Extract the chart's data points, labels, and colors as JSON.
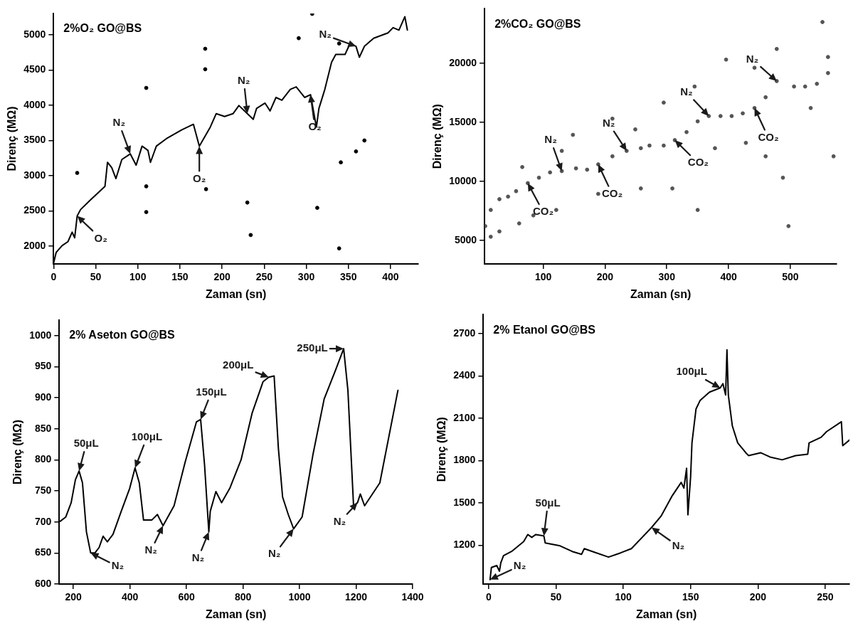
{
  "chart_data": [
    {
      "type": "line",
      "title": "2%O₂ GO@BS",
      "xlabel": "Zaman (sn)",
      "ylabel": "Direnç (MΩ)",
      "xlim": [
        0,
        433
      ],
      "ylim": [
        1750,
        5300
      ],
      "xticks": [
        0,
        50,
        100,
        150,
        200,
        250,
        300,
        350,
        400
      ],
      "yticks": [
        2000,
        2500,
        3000,
        3500,
        4000,
        4500,
        5000
      ],
      "series": [
        {
          "type": "line",
          "color": "#000000",
          "x": [
            0,
            3,
            10,
            17,
            22,
            25,
            28,
            32,
            44,
            61,
            64,
            69,
            74,
            81,
            91,
            98,
            105,
            112,
            115,
            122,
            135,
            152,
            166,
            173,
            186,
            193,
            203,
            213,
            220,
            230,
            237,
            241,
            251,
            257,
            264,
            271,
            281,
            288,
            298,
            305,
            312,
            315,
            322,
            330,
            335,
            346,
            352,
            359,
            363,
            369,
            380,
            397,
            403,
            410,
            417,
            420
          ],
          "values": [
            1760,
            1912,
            2008,
            2065,
            2200,
            2120,
            2430,
            2520,
            2660,
            2850,
            3190,
            3115,
            2960,
            3230,
            3310,
            3150,
            3420,
            3360,
            3190,
            3420,
            3535,
            3650,
            3730,
            3420,
            3690,
            3880,
            3840,
            3880,
            3995,
            3880,
            3800,
            3955,
            4030,
            3920,
            4110,
            4070,
            4225,
            4260,
            4110,
            4150,
            3690,
            3955,
            4225,
            4610,
            4720,
            4720,
            4875,
            4835,
            4680,
            4835,
            4950,
            5025,
            5100,
            5065,
            5255,
            5065
          ]
        },
        {
          "type": "scatter",
          "marker": "circle",
          "color": "#000000",
          "x": [
            28,
            110,
            110,
            110,
            180,
            180,
            181,
            230,
            234,
            313,
            339,
            341,
            359,
            307,
            291,
            369,
            339
          ],
          "values": [
            3040,
            4245,
            2850,
            2485,
            4800,
            4510,
            2810,
            2620,
            2160,
            2545,
            1970,
            3190,
            3345,
            5295,
            4950,
            3500,
            4875
          ]
        }
      ],
      "annotations": [
        {
          "text": "O₂",
          "x": 28,
          "y": 2430
        },
        {
          "text": "N₂",
          "x": 91,
          "y": 3310
        },
        {
          "text": "O₂",
          "x": 173,
          "y": 3420
        },
        {
          "text": "N₂",
          "x": 230,
          "y": 3880
        },
        {
          "text": "O₂",
          "x": 305,
          "y": 4150
        },
        {
          "text": "N₂",
          "x": 359,
          "y": 4835
        }
      ]
    },
    {
      "type": "scatter",
      "marker": "circle",
      "color": "#555555",
      "title": "2%CO₂ GO@BS",
      "xlabel": "Zaman (sn)",
      "ylabel": "Direnç (MΩ)",
      "xlim": [
        5,
        575
      ],
      "ylim": [
        3000,
        24600
      ],
      "xticks": [
        100,
        200,
        300,
        400,
        500
      ],
      "yticks": [
        5000,
        10000,
        15000,
        20000
      ],
      "x": [
        6,
        15,
        29,
        43,
        56,
        75,
        93,
        111,
        130,
        153,
        171,
        189,
        212,
        235,
        258,
        272,
        295,
        313,
        332,
        350,
        368,
        387,
        405,
        423,
        442,
        460,
        478,
        506,
        524,
        543,
        561,
        15,
        29,
        66,
        61,
        84,
        130,
        121,
        148,
        189,
        212,
        249,
        258,
        295,
        309,
        345,
        350,
        378,
        396,
        428,
        442,
        460,
        478,
        488,
        497,
        533,
        552,
        570,
        561
      ],
      "values": [
        6200,
        7570,
        8480,
        8700,
        9160,
        9840,
        10300,
        10750,
        10860,
        11090,
        10980,
        11430,
        12110,
        12570,
        12800,
        13020,
        13020,
        13480,
        14160,
        15070,
        15520,
        15520,
        15520,
        15750,
        16200,
        17110,
        18480,
        18020,
        18020,
        18250,
        19160,
        5300,
        5750,
        11200,
        6430,
        7110,
        12570,
        7570,
        13930,
        8930,
        15300,
        14390,
        9390,
        16660,
        9390,
        18020,
        7570,
        12800,
        20300,
        13250,
        19610,
        12110,
        21200,
        10300,
        6200,
        16200,
        23480,
        12110,
        20520
      ],
      "annotations": [
        {
          "text": "CO₂",
          "x": 75,
          "y": 9840
        },
        {
          "text": "N₂",
          "x": 130,
          "y": 10860
        },
        {
          "text": "CO₂",
          "x": 189,
          "y": 11430
        },
        {
          "text": "N₂",
          "x": 235,
          "y": 12570
        },
        {
          "text": "CO₂",
          "x": 313,
          "y": 13480
        },
        {
          "text": "N₂",
          "x": 368,
          "y": 15520
        },
        {
          "text": "CO₂",
          "x": 442,
          "y": 16200
        },
        {
          "text": "N₂",
          "x": 478,
          "y": 18480
        }
      ]
    },
    {
      "type": "line",
      "color": "#000000",
      "title": "2% Aseton GO@BS",
      "xlabel": "Zaman (sn)",
      "ylabel": "Direnç (MΩ)",
      "xlim": [
        150,
        1400
      ],
      "ylim": [
        600,
        1025
      ],
      "xticks": [
        200,
        400,
        600,
        800,
        1000,
        1200,
        1400
      ],
      "yticks": [
        600,
        650,
        700,
        750,
        800,
        850,
        900,
        950,
        1000
      ],
      "x": [
        153,
        173,
        192,
        207,
        220,
        232,
        246,
        261,
        276,
        291,
        305,
        320,
        340,
        369,
        399,
        418,
        433,
        448,
        477,
        497,
        517,
        556,
        595,
        635,
        650,
        664,
        679,
        684,
        704,
        724,
        753,
        793,
        832,
        871,
        891,
        910,
        925,
        940,
        960,
        979,
        1009,
        1048,
        1087,
        1127,
        1156,
        1171,
        1191,
        1205,
        1215,
        1230,
        1284,
        1348
      ],
      "values": [
        701,
        708,
        731,
        768,
        782,
        763,
        684,
        650,
        650,
        659,
        677,
        668,
        680,
        717,
        754,
        787,
        763,
        703,
        703,
        712,
        694,
        726,
        796,
        861,
        865,
        791,
        684,
        717,
        749,
        731,
        754,
        800,
        875,
        926,
        933,
        935,
        819,
        740,
        712,
        689,
        708,
        810,
        898,
        944,
        979,
        912,
        726,
        731,
        745,
        726,
        763,
        912
      ],
      "annotations": [
        {
          "text": "50μL",
          "x": 220,
          "y": 782
        },
        {
          "text": "N₂",
          "x": 261,
          "y": 650
        },
        {
          "text": "100μL",
          "x": 418,
          "y": 787
        },
        {
          "text": "N₂",
          "x": 517,
          "y": 694
        },
        {
          "text": "150μL",
          "x": 650,
          "y": 865
        },
        {
          "text": "N₂",
          "x": 679,
          "y": 684
        },
        {
          "text": "200μL",
          "x": 891,
          "y": 933
        },
        {
          "text": "N₂",
          "x": 979,
          "y": 689
        },
        {
          "text": "250μL",
          "x": 1156,
          "y": 979
        },
        {
          "text": "N₂",
          "x": 1205,
          "y": 731
        }
      ]
    },
    {
      "type": "line",
      "color": "#000000",
      "title": "2% Etanol GO@BS",
      "xlabel": "Zaman (sn)",
      "ylabel": "Direnç (MΩ)",
      "xlim": [
        -4,
        268
      ],
      "ylim": [
        925,
        2835
      ],
      "xticks": [
        0,
        50,
        100,
        150,
        200,
        250
      ],
      "yticks": [
        1200,
        1500,
        1800,
        2100,
        2400,
        2700
      ],
      "x": [
        1,
        2,
        6,
        8,
        9,
        11,
        17,
        26,
        29,
        32,
        35,
        41,
        42,
        53,
        62,
        69,
        71,
        77,
        89,
        98,
        106,
        113,
        121,
        128,
        136,
        143,
        145,
        147,
        148,
        150,
        151,
        154,
        157,
        164,
        172,
        174,
        176,
        177,
        178,
        181,
        185,
        191,
        193,
        202,
        209,
        218,
        228,
        237,
        238,
        247,
        251,
        262,
        263,
        268
      ],
      "values": [
        956,
        1042,
        1056,
        1016,
        1076,
        1126,
        1156,
        1226,
        1276,
        1256,
        1276,
        1266,
        1216,
        1196,
        1156,
        1136,
        1176,
        1156,
        1116,
        1146,
        1176,
        1246,
        1326,
        1406,
        1546,
        1646,
        1606,
        1746,
        1416,
        1686,
        1926,
        2166,
        2226,
        2286,
        2316,
        2346,
        2266,
        2586,
        2266,
        2046,
        1926,
        1856,
        1836,
        1856,
        1826,
        1806,
        1836,
        1846,
        1926,
        1966,
        2006,
        2076,
        1906,
        1946
      ],
      "annotations": [
        {
          "text": "N₂",
          "x": 1,
          "y": 956
        },
        {
          "text": "50μL",
          "x": 41,
          "y": 1266
        },
        {
          "text": "N₂",
          "x": 121,
          "y": 1326
        },
        {
          "text": "100μL",
          "x": 172,
          "y": 2316
        }
      ]
    }
  ]
}
